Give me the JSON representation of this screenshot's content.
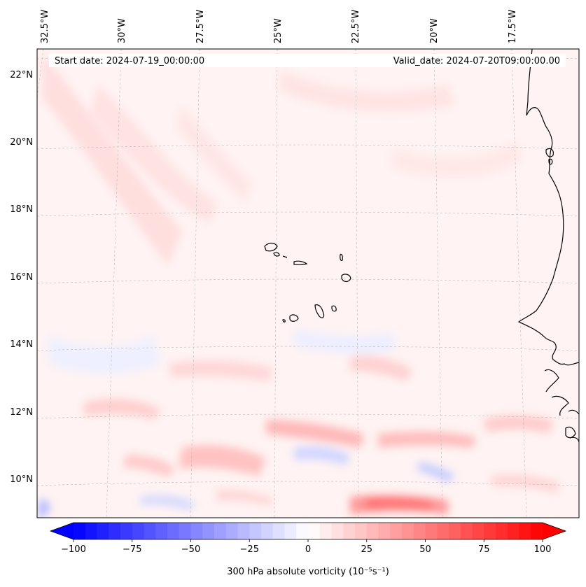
{
  "map": {
    "start_label": "Start date: 2024-07-19_00:00:00",
    "valid_label": "Valid_date: 2024-07-20T09:00:00.00",
    "longitude_labels": [
      "32.5°W",
      "30°W",
      "27.5°W",
      "25°W",
      "22.5°W",
      "20°W",
      "17.5°W"
    ],
    "latitude_labels": [
      "22°N",
      "20°N",
      "18°N",
      "16°N",
      "14°N",
      "12°N",
      "10°N"
    ],
    "extent": {
      "lon": [
        -32.75,
        -15.3
      ],
      "lat": [
        8.9,
        22.8
      ]
    },
    "field": "300 hPa absolute vorticity"
  },
  "colorbar": {
    "label": "300 hPa absolute vorticity (10⁻⁵s⁻¹)",
    "ticks": [
      "−100",
      "−75",
      "−50",
      "−25",
      "0",
      "25",
      "50",
      "75",
      "100"
    ],
    "min": -100,
    "max": 100,
    "extend": "both",
    "colormap": "bwr",
    "colors": {
      "low": "#0000ff",
      "mid": "#ffffff",
      "high": "#ff0000"
    }
  },
  "colors": {
    "coastline": "#000000",
    "gridline": "#bbbbbb",
    "ocean_base": "#fff3f3"
  }
}
